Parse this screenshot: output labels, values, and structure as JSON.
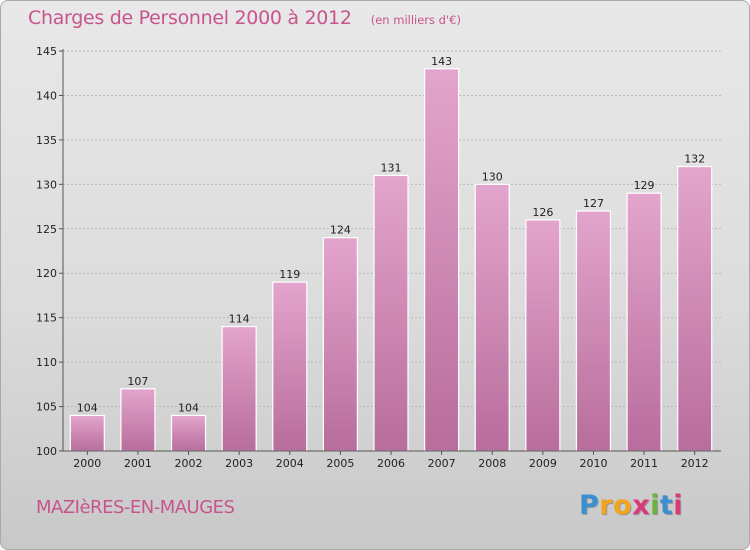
{
  "header": {
    "title": "Charges de Personnel 2000 à 2012",
    "unit": "(en milliers d'€)"
  },
  "footer": {
    "location": "MAZIèRES-EN-MAUGES",
    "brand_letters": [
      "P",
      "r",
      "o",
      "x",
      "i",
      "t",
      "i"
    ],
    "brand_colors": [
      "#3a8fd0",
      "#f2a51a",
      "#f2a51a",
      "#d93a7a",
      "#6db23e",
      "#3a8fd0",
      "#d93a7a"
    ]
  },
  "colors": {
    "bar_top": "#e3a4cd",
    "bar_bottom": "#b86d9c",
    "title": "#c8548e",
    "axis_text": "#222222",
    "grid": "#b9b9b9"
  },
  "chart_data": {
    "type": "bar",
    "title": "Charges de Personnel 2000 à 2012",
    "subtitle": "(en milliers d'€)",
    "categories": [
      "2000",
      "2001",
      "2002",
      "2003",
      "2004",
      "2005",
      "2006",
      "2007",
      "2008",
      "2009",
      "2010",
      "2011",
      "2012"
    ],
    "values": [
      104,
      107,
      104,
      114,
      119,
      124,
      131,
      143,
      130,
      126,
      127,
      129,
      132
    ],
    "ylim": [
      100,
      145
    ],
    "yticks": [
      100,
      105,
      110,
      115,
      120,
      125,
      130,
      135,
      140,
      145
    ],
    "grid": true,
    "data_labels": true
  }
}
